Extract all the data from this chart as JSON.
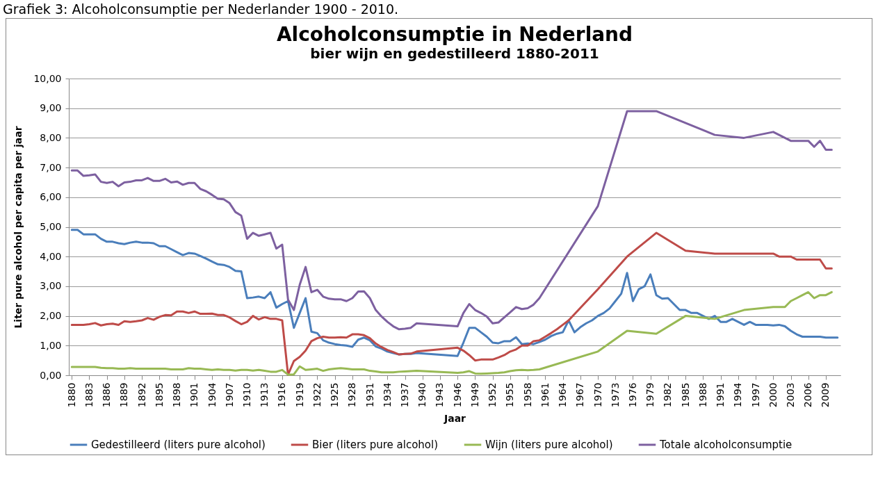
{
  "chart_data": {
    "type": "line",
    "title": "Alcoholconsumptie in Nederland",
    "subtitle": "bier wijn en gedestilleerd 1880-2011",
    "xlabel": "Jaar",
    "ylabel": "Liter pure alcohol per capita per jaar",
    "annotations": [
      "Grafiek 3: Alcoholconsumptie per Nederlander 1900 - 2010."
    ],
    "xlim": [
      1879.5,
      2011.5
    ],
    "xticks": [
      1880,
      1883,
      1886,
      1889,
      1892,
      1895,
      1898,
      1901,
      1904,
      1907,
      1910,
      1913,
      1916,
      1919,
      1922,
      1925,
      1928,
      1931,
      1934,
      1937,
      1940,
      1943,
      1946,
      1949,
      1952,
      1955,
      1958,
      1961,
      1964,
      1967,
      1970,
      1973,
      1976,
      1979,
      1982,
      1985,
      1988,
      1991,
      1994,
      1997,
      2000,
      2003,
      2006,
      2009
    ],
    "ylim": [
      0,
      10
    ],
    "yticks": [
      {
        "value": 0,
        "label": "0,00"
      },
      {
        "value": 1,
        "label": "1,00"
      },
      {
        "value": 2,
        "label": "2,00"
      },
      {
        "value": 3,
        "label": "3,00"
      },
      {
        "value": 4,
        "label": "4,00"
      },
      {
        "value": 5,
        "label": "5,00"
      },
      {
        "value": 6,
        "label": "6,00"
      },
      {
        "value": 7,
        "label": "7,00"
      },
      {
        "value": 8,
        "label": "8,00"
      },
      {
        "value": 9,
        "label": "9,00"
      },
      {
        "value": 10,
        "label": "10,00"
      }
    ],
    "grid": "y",
    "legend": "bottom",
    "series": [
      {
        "name": "Gedestilleerd (liters pure alcohol)",
        "color": "#4a7ebb",
        "x": [
          1880,
          1881,
          1882,
          1883,
          1884,
          1885,
          1886,
          1887,
          1888,
          1889,
          1890,
          1891,
          1892,
          1893,
          1894,
          1895,
          1896,
          1897,
          1898,
          1899,
          1900,
          1901,
          1902,
          1903,
          1904,
          1905,
          1906,
          1907,
          1908,
          1909,
          1910,
          1911,
          1912,
          1913,
          1914,
          1915,
          1916,
          1917,
          1918,
          1919,
          1920,
          1921,
          1922,
          1923,
          1924,
          1925,
          1926,
          1927,
          1928,
          1929,
          1930,
          1931,
          1932,
          1933,
          1934,
          1935,
          1936,
          1937,
          1938,
          1939,
          1946,
          1947,
          1948,
          1949,
          1950,
          1951,
          1952,
          1953,
          1954,
          1955,
          1956,
          1957,
          1958,
          1959,
          1960,
          1961,
          1962,
          1963,
          1964,
          1965,
          1966,
          1967,
          1968,
          1969,
          1970,
          1971,
          1972,
          1973,
          1974,
          1975,
          1976,
          1977,
          1978,
          1979,
          1980,
          1981,
          1982,
          1983,
          1984,
          1985,
          1986,
          1987,
          1988,
          1989,
          1990,
          1991,
          1992,
          1993,
          1994,
          1995,
          1996,
          1997,
          1998,
          1999,
          2000,
          2001,
          2002,
          2003,
          2004,
          2005,
          2006,
          2007,
          2008,
          2009,
          2010,
          2011
        ],
        "values": [
          4.9,
          4.9,
          4.75,
          4.75,
          4.75,
          4.6,
          4.5,
          4.5,
          4.45,
          4.42,
          4.47,
          4.5,
          4.47,
          4.47,
          4.45,
          4.35,
          4.35,
          4.25,
          4.15,
          4.05,
          4.12,
          4.1,
          4.02,
          3.93,
          3.83,
          3.74,
          3.72,
          3.65,
          3.52,
          3.5,
          2.6,
          2.62,
          2.65,
          2.6,
          2.8,
          2.28,
          2.4,
          2.5,
          1.6,
          2.1,
          2.6,
          1.47,
          1.42,
          1.18,
          1.1,
          1.05,
          1.02,
          1.0,
          0.96,
          1.2,
          1.27,
          1.18,
          0.97,
          0.9,
          0.8,
          0.75,
          0.7,
          0.72,
          0.72,
          0.75,
          0.65,
          1.1,
          1.6,
          1.6,
          1.45,
          1.3,
          1.1,
          1.08,
          1.15,
          1.15,
          1.28,
          1.05,
          1.07,
          1.05,
          1.12,
          1.2,
          1.32,
          1.4,
          1.45,
          1.85,
          1.45,
          1.62,
          1.75,
          1.85,
          2.0,
          2.1,
          2.25,
          2.5,
          2.75,
          3.45,
          2.5,
          2.9,
          3.0,
          3.4,
          2.7,
          2.58,
          2.6,
          2.4,
          2.2,
          2.2,
          2.1,
          2.1,
          2.0,
          1.9,
          2.0,
          1.8,
          1.8,
          1.9,
          1.8,
          1.7,
          1.8,
          1.7,
          1.7,
          1.7,
          1.68,
          1.7,
          1.65,
          1.5,
          1.38,
          1.3,
          1.3,
          1.3,
          1.3,
          1.27,
          1.27,
          1.27
        ]
      },
      {
        "name": "Bier (liters pure alcohol)",
        "color": "#be4b48",
        "x": [
          1880,
          1881,
          1882,
          1883,
          1884,
          1885,
          1886,
          1887,
          1888,
          1889,
          1890,
          1891,
          1892,
          1893,
          1894,
          1895,
          1896,
          1897,
          1898,
          1899,
          1900,
          1901,
          1902,
          1903,
          1904,
          1905,
          1906,
          1907,
          1908,
          1909,
          1910,
          1911,
          1912,
          1913,
          1914,
          1915,
          1916,
          1917,
          1918,
          1919,
          1920,
          1921,
          1922,
          1923,
          1924,
          1925,
          1926,
          1927,
          1928,
          1929,
          1930,
          1931,
          1932,
          1933,
          1934,
          1935,
          1936,
          1937,
          1938,
          1939,
          1946,
          1947,
          1948,
          1949,
          1950,
          1951,
          1952,
          1953,
          1954,
          1955,
          1956,
          1957,
          1958,
          1959,
          1960,
          1961,
          1962,
          1963,
          1964,
          1965,
          1970,
          1975,
          1980,
          1985,
          1990,
          1995,
          2000,
          2001,
          2002,
          2003,
          2004,
          2005,
          2006,
          2007,
          2008,
          2009,
          2010
        ],
        "values": [
          1.7,
          1.7,
          1.7,
          1.72,
          1.76,
          1.68,
          1.72,
          1.74,
          1.7,
          1.82,
          1.8,
          1.82,
          1.85,
          1.93,
          1.87,
          1.97,
          2.03,
          2.02,
          2.15,
          2.15,
          2.1,
          2.15,
          2.07,
          2.07,
          2.08,
          2.03,
          2.03,
          1.95,
          1.83,
          1.72,
          1.8,
          2.0,
          1.88,
          1.96,
          1.9,
          1.9,
          1.85,
          0.02,
          0.48,
          0.62,
          0.83,
          1.15,
          1.25,
          1.3,
          1.27,
          1.27,
          1.28,
          1.27,
          1.38,
          1.38,
          1.35,
          1.25,
          1.07,
          0.95,
          0.85,
          0.78,
          0.7,
          0.72,
          0.73,
          0.8,
          0.93,
          0.83,
          0.68,
          0.5,
          0.53,
          0.53,
          0.53,
          0.6,
          0.68,
          0.8,
          0.87,
          1.0,
          1.0,
          1.15,
          1.18,
          1.3,
          1.42,
          1.55,
          1.7,
          1.85,
          2.9,
          4.0,
          4.8,
          4.2,
          4.1,
          4.1,
          4.1,
          4.0,
          4.0,
          4.0,
          3.9,
          3.9,
          3.9,
          3.9,
          3.9,
          3.6,
          3.6
        ]
      },
      {
        "name": "Wijn (liters pure alcohol)",
        "color": "#98b954",
        "x": [
          1880,
          1881,
          1882,
          1883,
          1884,
          1885,
          1886,
          1887,
          1888,
          1889,
          1890,
          1891,
          1892,
          1893,
          1894,
          1895,
          1896,
          1897,
          1898,
          1899,
          1900,
          1901,
          1902,
          1903,
          1904,
          1905,
          1906,
          1907,
          1908,
          1909,
          1910,
          1911,
          1912,
          1913,
          1914,
          1915,
          1916,
          1917,
          1918,
          1919,
          1920,
          1921,
          1922,
          1923,
          1924,
          1925,
          1926,
          1927,
          1928,
          1929,
          1930,
          1931,
          1932,
          1933,
          1934,
          1935,
          1936,
          1937,
          1938,
          1939,
          1946,
          1947,
          1948,
          1949,
          1950,
          1951,
          1952,
          1953,
          1954,
          1955,
          1956,
          1957,
          1958,
          1959,
          1960,
          1970,
          1975,
          1980,
          1985,
          1990,
          1995,
          2000,
          2001,
          2002,
          2003,
          2004,
          2005,
          2006,
          2007,
          2008,
          2009,
          2010
        ],
        "values": [
          0.28,
          0.28,
          0.28,
          0.28,
          0.28,
          0.25,
          0.24,
          0.24,
          0.22,
          0.22,
          0.24,
          0.22,
          0.22,
          0.22,
          0.22,
          0.22,
          0.22,
          0.2,
          0.2,
          0.2,
          0.24,
          0.22,
          0.22,
          0.2,
          0.18,
          0.2,
          0.18,
          0.18,
          0.16,
          0.18,
          0.18,
          0.16,
          0.18,
          0.15,
          0.12,
          0.12,
          0.18,
          0.02,
          0.03,
          0.3,
          0.18,
          0.2,
          0.22,
          0.15,
          0.2,
          0.22,
          0.24,
          0.22,
          0.2,
          0.2,
          0.2,
          0.15,
          0.13,
          0.1,
          0.1,
          0.1,
          0.12,
          0.13,
          0.14,
          0.15,
          0.08,
          0.1,
          0.14,
          0.06,
          0.05,
          0.06,
          0.07,
          0.08,
          0.1,
          0.14,
          0.17,
          0.18,
          0.17,
          0.18,
          0.2,
          0.8,
          1.5,
          1.4,
          2.0,
          1.9,
          2.2,
          2.3,
          2.3,
          2.3,
          2.5,
          2.6,
          2.7,
          2.8,
          2.6,
          2.7,
          2.7,
          2.8
        ]
      },
      {
        "name": "Totale alcoholconsumptie",
        "color": "#7d60a0",
        "x": [
          1880,
          1881,
          1882,
          1883,
          1884,
          1885,
          1886,
          1887,
          1888,
          1889,
          1890,
          1891,
          1892,
          1893,
          1894,
          1895,
          1896,
          1897,
          1898,
          1899,
          1900,
          1901,
          1902,
          1903,
          1904,
          1905,
          1906,
          1907,
          1908,
          1909,
          1910,
          1911,
          1912,
          1913,
          1914,
          1915,
          1916,
          1917,
          1918,
          1919,
          1920,
          1921,
          1922,
          1923,
          1924,
          1925,
          1926,
          1927,
          1928,
          1929,
          1930,
          1931,
          1932,
          1933,
          1934,
          1935,
          1936,
          1937,
          1938,
          1939,
          1946,
          1947,
          1948,
          1949,
          1950,
          1951,
          1952,
          1953,
          1954,
          1955,
          1956,
          1957,
          1958,
          1959,
          1960,
          1970,
          1975,
          1980,
          1990,
          1995,
          2000,
          2003,
          2004,
          2005,
          2006,
          2007,
          2008,
          2009,
          2010
        ],
        "values": [
          6.9,
          6.9,
          6.72,
          6.74,
          6.77,
          6.52,
          6.48,
          6.52,
          6.37,
          6.5,
          6.52,
          6.57,
          6.57,
          6.65,
          6.55,
          6.55,
          6.62,
          6.5,
          6.53,
          6.42,
          6.48,
          6.48,
          6.28,
          6.2,
          6.08,
          5.95,
          5.93,
          5.8,
          5.5,
          5.38,
          4.6,
          4.8,
          4.7,
          4.75,
          4.8,
          4.27,
          4.4,
          2.55,
          2.2,
          3.05,
          3.65,
          2.8,
          2.88,
          2.65,
          2.58,
          2.56,
          2.56,
          2.5,
          2.6,
          2.82,
          2.83,
          2.6,
          2.2,
          1.98,
          1.8,
          1.65,
          1.55,
          1.57,
          1.6,
          1.75,
          1.65,
          2.1,
          2.4,
          2.2,
          2.1,
          1.98,
          1.75,
          1.78,
          1.95,
          2.12,
          2.3,
          2.23,
          2.26,
          2.38,
          2.6,
          5.7,
          8.9,
          8.9,
          8.1,
          8.0,
          8.2,
          7.9,
          7.9,
          7.9,
          7.9,
          7.7,
          7.9,
          7.6,
          7.6
        ]
      }
    ]
  }
}
